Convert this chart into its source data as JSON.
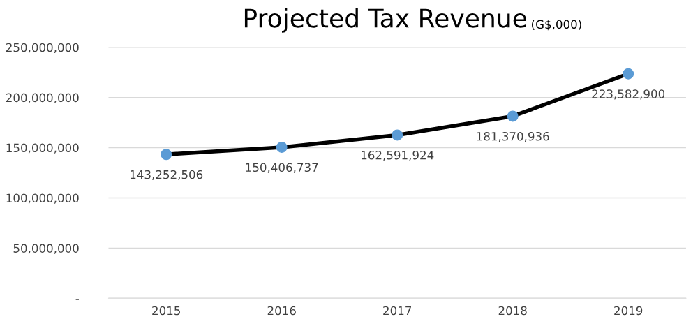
{
  "chart_data": {
    "type": "line",
    "title": "Projected Tax Revenue",
    "subtitle": "(G$,000)",
    "categories": [
      "2015",
      "2016",
      "2017",
      "2018",
      "2019"
    ],
    "series": [
      {
        "color": "#000000",
        "colors": [
          "#5b9bd5",
          "#5b9bd5",
          "#5b9bd5",
          "#5b9bd5",
          "#5b9bd5"
        ],
        "values": [
          143252506,
          150406737,
          162591924,
          181370936,
          223582900
        ],
        "value_labels": [
          "143,252,506",
          "150,406,737",
          "162,591,924",
          "181,370,936",
          "223,582,900"
        ]
      }
    ],
    "ylim": [
      0,
      250000000
    ],
    "yticks": [
      {
        "value": 0,
        "label": "-"
      },
      {
        "value": 50000000,
        "label": "50,000,000"
      },
      {
        "value": 100000000,
        "label": "100,000,000"
      },
      {
        "value": 150000000,
        "label": "150,000,000"
      },
      {
        "value": 200000000,
        "label": "200,000,000"
      },
      {
        "value": 250000000,
        "label": "250,000,000"
      }
    ],
    "grid": "y",
    "marker": "circle",
    "line_style": "solid"
  }
}
